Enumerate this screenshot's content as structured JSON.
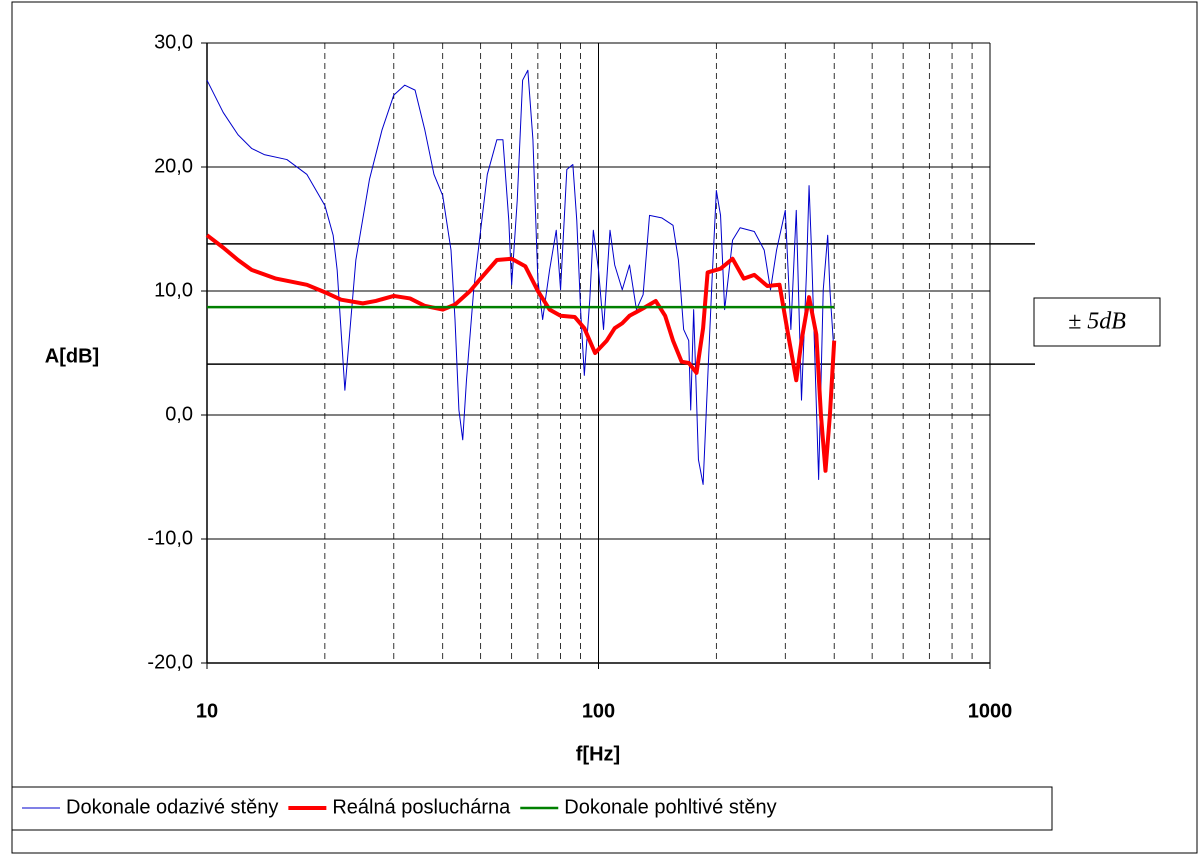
{
  "chart_data": {
    "type": "line",
    "xlabel": "f[Hz]",
    "ylabel": "A[dB]",
    "xscale": "log",
    "xlim": [
      10,
      1000
    ],
    "xticks": [
      10,
      100,
      1000
    ],
    "ylim": [
      -20,
      30
    ],
    "yticks": [
      {
        "value": -20,
        "label": "-20,0"
      },
      {
        "value": -10,
        "label": "-10,0"
      },
      {
        "value": 0,
        "label": "0,0"
      },
      {
        "value": 10,
        "label": "10,0"
      },
      {
        "value": 20,
        "label": "20,0"
      },
      {
        "value": 30,
        "label": "30,0"
      }
    ],
    "grid": true,
    "reference_lines": [
      13.8,
      4.1
    ],
    "annotation": "± 5dB",
    "legend": "bottom",
    "series": [
      {
        "name": "Dokonale odazivé stěny",
        "color": "#0000cc",
        "x": [
          10,
          11,
          12,
          13,
          14,
          16,
          18,
          20,
          21,
          21.5,
          22.5,
          24,
          26,
          28,
          30,
          32,
          34,
          36,
          38,
          40,
          42,
          43,
          44,
          45,
          46,
          48,
          50,
          52,
          55,
          57,
          59,
          60,
          62,
          64,
          66,
          68,
          70,
          72,
          75,
          78,
          80,
          83,
          86,
          88,
          90,
          92,
          95,
          97,
          100,
          103,
          107,
          110,
          115,
          120,
          125,
          130,
          135,
          145,
          155,
          160,
          165,
          170,
          172,
          175,
          180,
          185,
          190,
          195,
          200,
          205,
          210,
          220,
          230,
          250,
          265,
          275,
          285,
          300,
          310,
          320,
          330,
          340,
          345,
          350,
          365,
          375,
          385,
          390,
          400
        ],
        "values": [
          27.0,
          24.4,
          22.6,
          21.5,
          21.0,
          20.6,
          19.4,
          16.9,
          14.5,
          11.7,
          2.0,
          12.5,
          19.0,
          23.0,
          25.8,
          26.6,
          26.2,
          23.0,
          19.4,
          17.7,
          13.3,
          7.7,
          0.4,
          -2.0,
          2.8,
          10.1,
          14.9,
          19.4,
          22.2,
          22.2,
          15.7,
          10.5,
          17.3,
          27.0,
          27.8,
          22.2,
          10.9,
          7.7,
          11.7,
          14.9,
          10.1,
          19.8,
          20.2,
          15.7,
          8.5,
          3.2,
          9.3,
          14.9,
          11.7,
          6.9,
          14.9,
          12.1,
          10.1,
          12.1,
          8.5,
          9.7,
          16.1,
          15.9,
          15.3,
          12.5,
          6.9,
          6.0,
          0.4,
          8.5,
          -3.6,
          -5.6,
          2.8,
          10.9,
          18.1,
          16.1,
          8.5,
          14.1,
          15.1,
          14.8,
          13.3,
          10.1,
          13.3,
          16.5,
          6.9,
          16.5,
          1.2,
          11.7,
          18.5,
          13.3,
          -5.2,
          10.1,
          14.5,
          10.1,
          4.8
        ]
      },
      {
        "name": "Reálná posluchárna",
        "color": "#ff0000",
        "x": [
          10,
          11,
          12,
          13,
          15,
          18,
          20,
          22,
          25,
          27,
          30,
          33,
          36,
          40,
          43,
          47,
          50,
          55,
          60,
          65,
          70,
          75,
          80,
          87,
          92,
          98,
          105,
          110,
          115,
          120,
          130,
          140,
          148,
          155,
          163,
          170,
          178,
          185,
          190,
          205,
          220,
          235,
          250,
          270,
          290,
          305,
          320,
          330,
          345,
          360,
          370,
          380,
          390,
          400
        ],
        "values": [
          14.5,
          13.5,
          12.5,
          11.7,
          11.0,
          10.5,
          9.9,
          9.3,
          9.0,
          9.2,
          9.6,
          9.4,
          8.8,
          8.5,
          8.9,
          10.0,
          11.0,
          12.5,
          12.6,
          12.0,
          10.0,
          8.5,
          8.0,
          7.9,
          7.0,
          5.0,
          6.0,
          7.0,
          7.4,
          8.0,
          8.6,
          9.2,
          8.0,
          6.0,
          4.3,
          4.2,
          3.4,
          7.0,
          11.5,
          11.8,
          12.6,
          11.0,
          11.3,
          10.4,
          10.5,
          6.5,
          2.8,
          6.0,
          9.5,
          6.5,
          0.0,
          -4.5,
          0.0,
          6.0
        ]
      },
      {
        "name": "Dokonale pohltivé stěny",
        "color": "#008000",
        "x": [
          10,
          400
        ],
        "values": [
          8.7,
          8.7
        ]
      }
    ]
  }
}
